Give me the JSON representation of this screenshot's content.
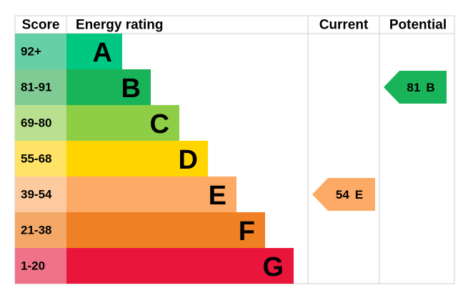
{
  "header": {
    "score": "Score",
    "energy_rating": "Energy rating",
    "current": "Current",
    "potential": "Potential"
  },
  "rows": [
    {
      "score": "92+",
      "rating": "A",
      "color": "#00c781",
      "score_color": "#66cfa5"
    },
    {
      "score": "81-91",
      "rating": "B",
      "color": "#19b459",
      "score_color": "#7fcb93"
    },
    {
      "score": "69-80",
      "rating": "C",
      "color": "#8dce46",
      "score_color": "#b9e08f"
    },
    {
      "score": "55-68",
      "rating": "D",
      "color": "#ffd500",
      "score_color": "#ffe366"
    },
    {
      "score": "39-54",
      "rating": "E",
      "color": "#fcaa65",
      "score_color": "#fdcaa0"
    },
    {
      "score": "21-38",
      "rating": "F",
      "color": "#ef8023",
      "score_color": "#f4a867"
    },
    {
      "score": "1-20",
      "rating": "G",
      "color": "#e9153b",
      "score_color": "#f07289"
    }
  ],
  "current": {
    "score": 54,
    "rating": "E",
    "color": "#fcaa65",
    "text_color": "#000000"
  },
  "potential": {
    "score": 81,
    "rating": "B",
    "color": "#19b459",
    "text_color": "#000000"
  }
}
